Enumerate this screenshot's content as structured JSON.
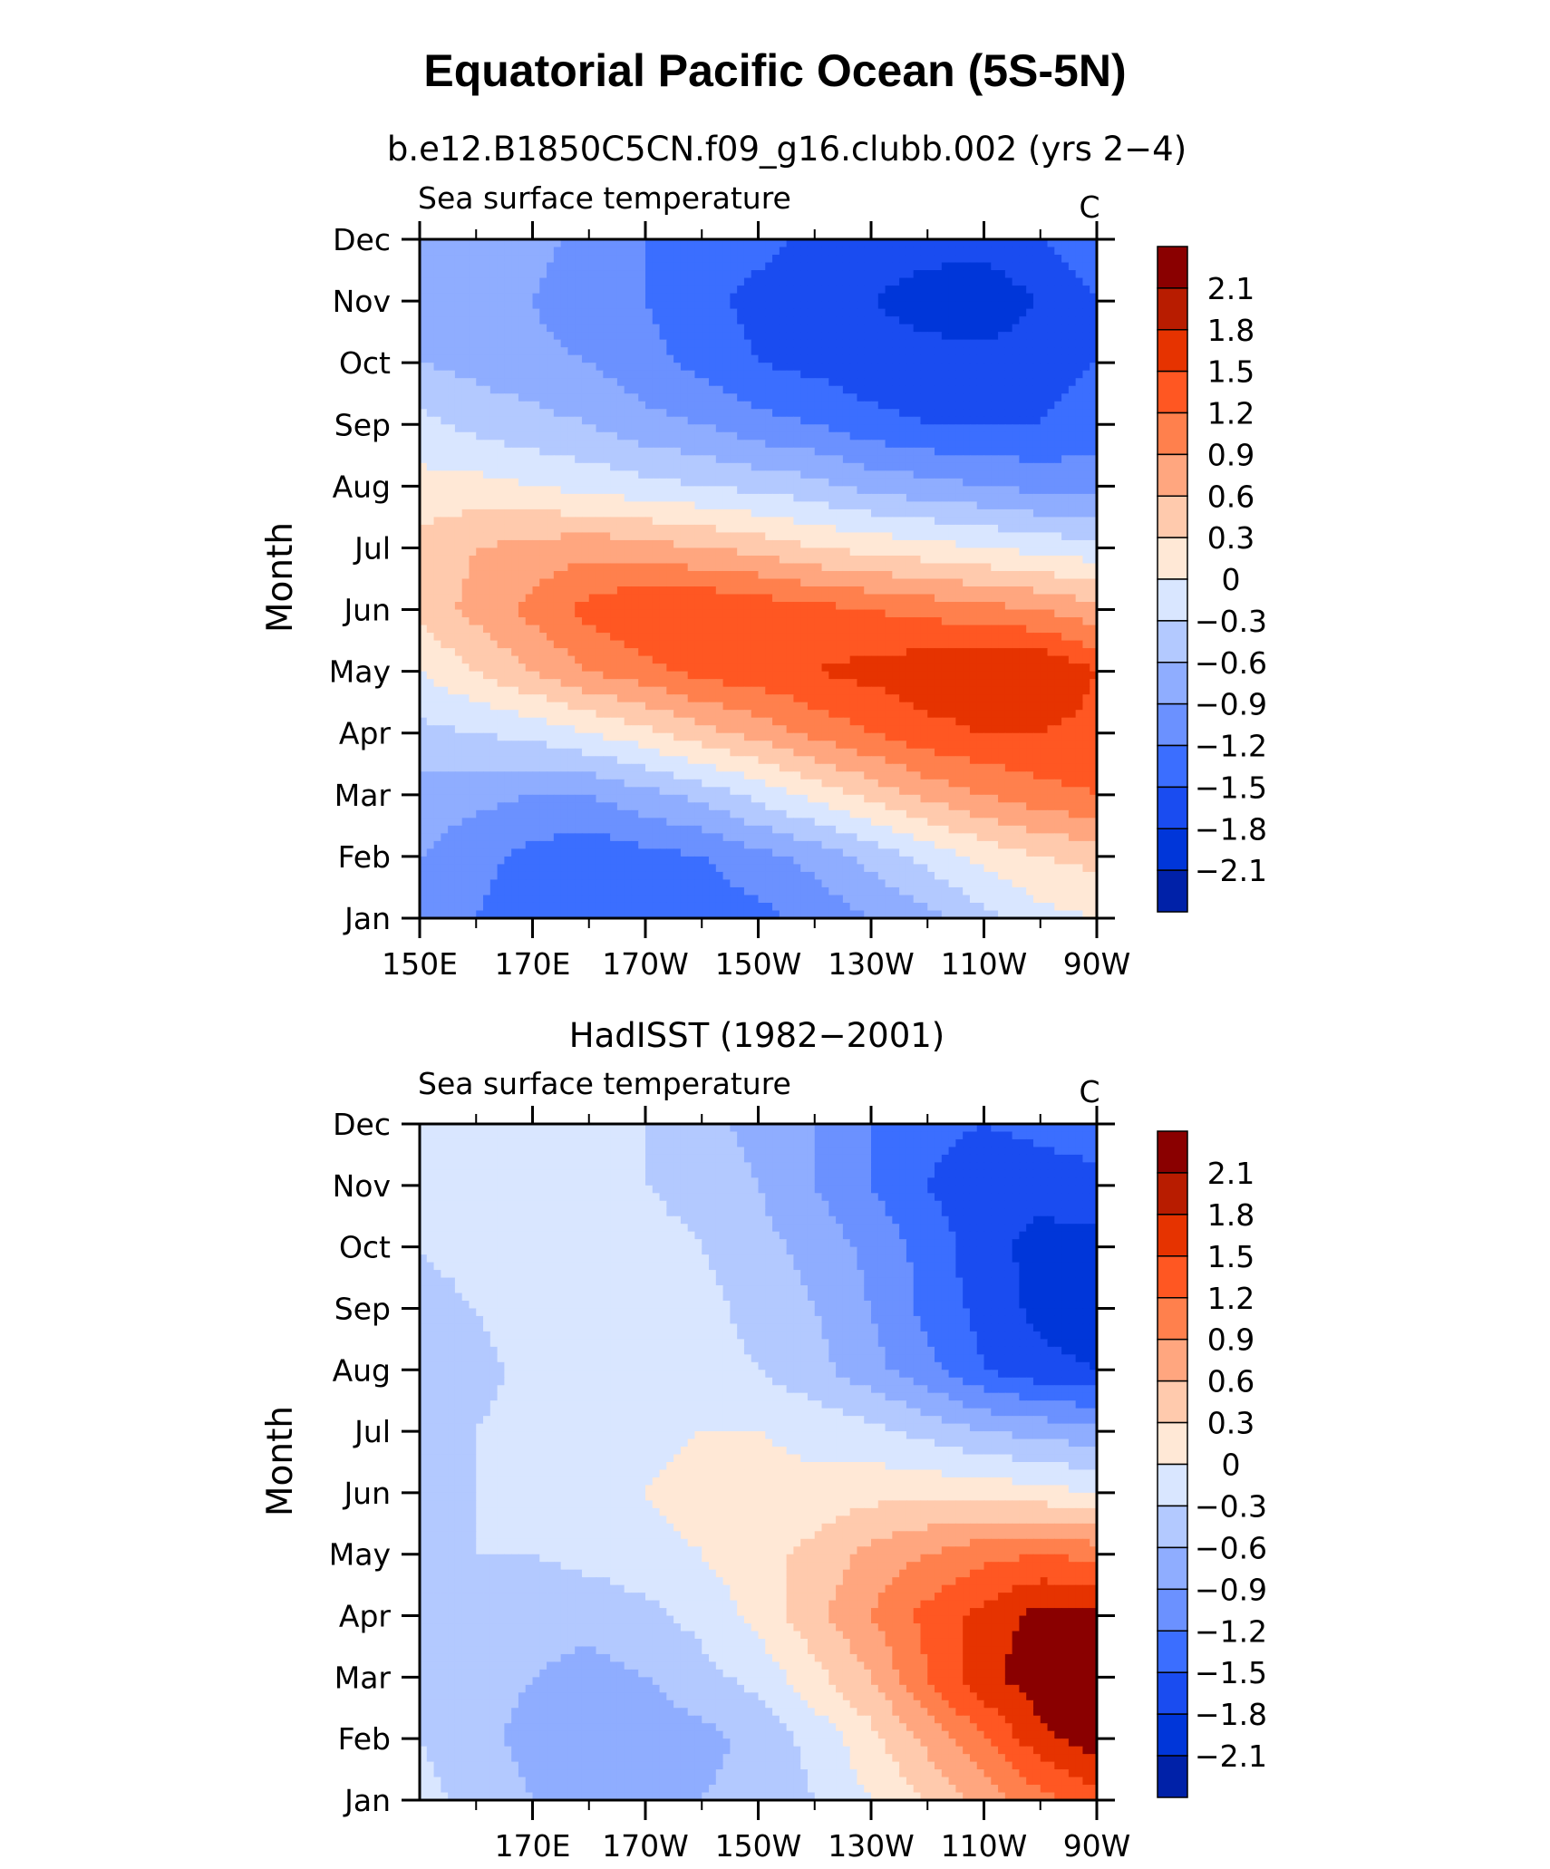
{
  "title": "Equatorial Pacific Ocean (5S-5N)",
  "colors": {
    "levels": [
      "#000080",
      "#0021a8",
      "#0036d9",
      "#1a4cf0",
      "#3b6eff",
      "#6b91ff",
      "#8fadff",
      "#b3c9ff",
      "#d9e6ff",
      "#ffe8d6",
      "#ffcaad",
      "#ffa67f",
      "#ff804d",
      "#ff5722",
      "#e63300",
      "#b81c00",
      "#8a0000"
    ],
    "colorbar_ticks": [
      "2.1",
      "1.8",
      "1.5",
      "1.2",
      "0.9",
      "0.6",
      "0.3",
      "0",
      "−0.3",
      "−0.6",
      "−0.9",
      "−1.2",
      "−1.5",
      "−1.8",
      "−2.1"
    ]
  },
  "panels": [
    {
      "subtitle": "b.e12.B1850C5CN.f09_g16.clubb.002 (yrs 2−4)",
      "left_string": "Sea surface temperature",
      "right_string": "C",
      "ylabel": "Month",
      "months": [
        "Jan",
        "Feb",
        "Mar",
        "Apr",
        "May",
        "Jun",
        "Jul",
        "Aug",
        "Sep",
        "Oct",
        "Nov",
        "Dec"
      ],
      "xticks": [
        "150E",
        "170E",
        "170W",
        "150W",
        "130W",
        "110W",
        "90W"
      ]
    },
    {
      "subtitle": "HadISST (1982−2001)",
      "left_string": "Sea surface temperature",
      "right_string": "C",
      "ylabel": "Month",
      "months": [
        "Jan",
        "Feb",
        "Mar",
        "Apr",
        "May",
        "Jun",
        "Jul",
        "Aug",
        "Sep",
        "Oct",
        "Nov",
        "Dec"
      ],
      "xticks": [
        "170E",
        "170W",
        "150W",
        "130W",
        "110W",
        "90W"
      ]
    }
  ],
  "chart_data": [
    {
      "type": "heatmap",
      "title": "b.e12.B1850C5CN.f09_g16.clubb.002 (yrs 2−4)",
      "variable": "Sea surface temperature",
      "units": "C",
      "ylabel": "Month",
      "xlim": [
        150,
        270
      ],
      "contour_levels": [
        -2.1,
        -1.8,
        -1.5,
        -1.2,
        -0.9,
        -0.6,
        -0.3,
        0,
        0.3,
        0.6,
        0.9,
        1.2,
        1.5,
        1.8,
        2.1
      ],
      "x": [
        150,
        160,
        170,
        180,
        190,
        200,
        210,
        220,
        230,
        240,
        250,
        260,
        270
      ],
      "y": [
        "Jan",
        "Feb",
        "Mar",
        "Apr",
        "May",
        "Jun",
        "Jul",
        "Aug",
        "Sep",
        "Oct",
        "Nov",
        "Dec"
      ],
      "z": [
        [
          -0.7,
          -0.9,
          -1.1,
          -1.2,
          -1.2,
          -1.1,
          -1.0,
          -0.8,
          -0.6,
          -0.4,
          -0.1,
          0.2,
          0.3
        ],
        [
          -0.6,
          -0.8,
          -1.0,
          -1.1,
          -1.0,
          -0.9,
          -0.7,
          -0.5,
          -0.2,
          0.1,
          0.4,
          0.6,
          0.7
        ],
        [
          -0.4,
          -0.5,
          -0.6,
          -0.6,
          -0.4,
          -0.2,
          0.1,
          0.4,
          0.7,
          1.0,
          1.2,
          1.4,
          1.5
        ],
        [
          -0.1,
          0.0,
          0.1,
          0.3,
          0.5,
          0.8,
          1.0,
          1.3,
          1.5,
          1.7,
          1.8,
          1.8,
          1.7
        ],
        [
          0.3,
          0.6,
          0.9,
          1.2,
          1.4,
          1.6,
          1.7,
          1.8,
          1.9,
          2.0,
          2.1,
          2.1,
          1.8
        ],
        [
          0.7,
          1.0,
          1.3,
          1.6,
          1.8,
          1.8,
          1.7,
          1.6,
          1.5,
          1.4,
          1.3,
          1.2,
          1.0
        ],
        [
          0.7,
          0.9,
          1.0,
          1.1,
          1.0,
          0.9,
          0.8,
          0.6,
          0.5,
          0.4,
          0.3,
          0.2,
          0.1
        ],
        [
          0.4,
          0.4,
          0.3,
          0.2,
          0.1,
          0.0,
          -0.1,
          -0.2,
          -0.4,
          -0.5,
          -0.6,
          -0.7,
          -0.7
        ],
        [
          0.1,
          -0.1,
          -0.2,
          -0.3,
          -0.5,
          -0.6,
          -0.8,
          -0.9,
          -1.1,
          -1.2,
          -1.2,
          -1.2,
          -1.1
        ],
        [
          -0.3,
          -0.4,
          -0.5,
          -0.6,
          -0.8,
          -1.0,
          -1.2,
          -1.3,
          -1.4,
          -1.4,
          -1.4,
          -1.3,
          -1.2
        ],
        [
          -0.4,
          -0.5,
          -0.6,
          -0.8,
          -0.9,
          -1.1,
          -1.3,
          -1.4,
          -1.5,
          -1.6,
          -1.7,
          -1.5,
          -1.2
        ],
        [
          -0.3,
          -0.4,
          -0.5,
          -0.7,
          -0.9,
          -1.0,
          -1.1,
          -1.3,
          -1.4,
          -1.4,
          -1.4,
          -1.2,
          -1.0
        ]
      ]
    },
    {
      "type": "heatmap",
      "title": "HadISST (1982−2001)",
      "variable": "Sea surface temperature",
      "units": "C",
      "ylabel": "Month",
      "xlim": [
        150,
        270
      ],
      "contour_levels": [
        -2.1,
        -1.8,
        -1.5,
        -1.2,
        -0.9,
        -0.6,
        -0.3,
        0,
        0.3,
        0.6,
        0.9,
        1.2,
        1.5,
        1.8,
        2.1
      ],
      "x": [
        150,
        160,
        170,
        180,
        190,
        200,
        210,
        220,
        230,
        240,
        250,
        260,
        270
      ],
      "y": [
        "Jan",
        "Feb",
        "Mar",
        "Apr",
        "May",
        "Jun",
        "Jul",
        "Aug",
        "Sep",
        "Oct",
        "Nov",
        "Dec"
      ],
      "z": [
        [
          0.1,
          -0.1,
          -0.3,
          -0.4,
          -0.4,
          -0.3,
          -0.2,
          0.0,
          0.3,
          0.6,
          1.0,
          1.4,
          1.7
        ],
        [
          0.0,
          -0.2,
          -0.4,
          -0.5,
          -0.5,
          -0.4,
          -0.2,
          0.1,
          0.5,
          1.0,
          1.5,
          2.0,
          2.3
        ],
        [
          -0.1,
          -0.2,
          -0.3,
          -0.4,
          -0.3,
          -0.1,
          0.1,
          0.5,
          0.9,
          1.5,
          2.0,
          2.3,
          2.4
        ],
        [
          -0.1,
          -0.1,
          -0.2,
          -0.2,
          -0.1,
          0.1,
          0.4,
          0.8,
          1.2,
          1.6,
          1.9,
          2.2,
          2.2
        ],
        [
          -0.1,
          0.0,
          0.0,
          0.1,
          0.2,
          0.3,
          0.5,
          0.7,
          1.0,
          1.2,
          1.4,
          1.5,
          1.4
        ],
        [
          -0.1,
          0.0,
          0.1,
          0.2,
          0.3,
          0.4,
          0.4,
          0.4,
          0.5,
          0.5,
          0.5,
          0.4,
          0.3
        ],
        [
          -0.1,
          0.0,
          0.1,
          0.1,
          0.2,
          0.3,
          0.3,
          0.2,
          0.1,
          -0.1,
          -0.3,
          -0.4,
          -0.5
        ],
        [
          -0.2,
          -0.1,
          0.1,
          0.2,
          0.2,
          0.1,
          0.0,
          -0.2,
          -0.5,
          -0.8,
          -1.2,
          -1.4,
          -1.5
        ],
        [
          -0.1,
          0.0,
          0.2,
          0.3,
          0.2,
          0.1,
          -0.1,
          -0.3,
          -0.6,
          -1.0,
          -1.3,
          -1.6,
          -1.7
        ],
        [
          0.0,
          0.1,
          0.1,
          0.1,
          0.1,
          0.0,
          -0.2,
          -0.4,
          -0.7,
          -1.0,
          -1.4,
          -1.6,
          -1.6
        ],
        [
          0.1,
          0.1,
          0.1,
          0.1,
          0.0,
          -0.1,
          -0.3,
          -0.6,
          -0.9,
          -1.2,
          -1.4,
          -1.4,
          -1.3
        ],
        [
          0.1,
          0.1,
          0.1,
          0.1,
          0.0,
          -0.2,
          -0.4,
          -0.6,
          -0.9,
          -1.1,
          -1.2,
          -1.1,
          -1.0
        ]
      ]
    }
  ]
}
